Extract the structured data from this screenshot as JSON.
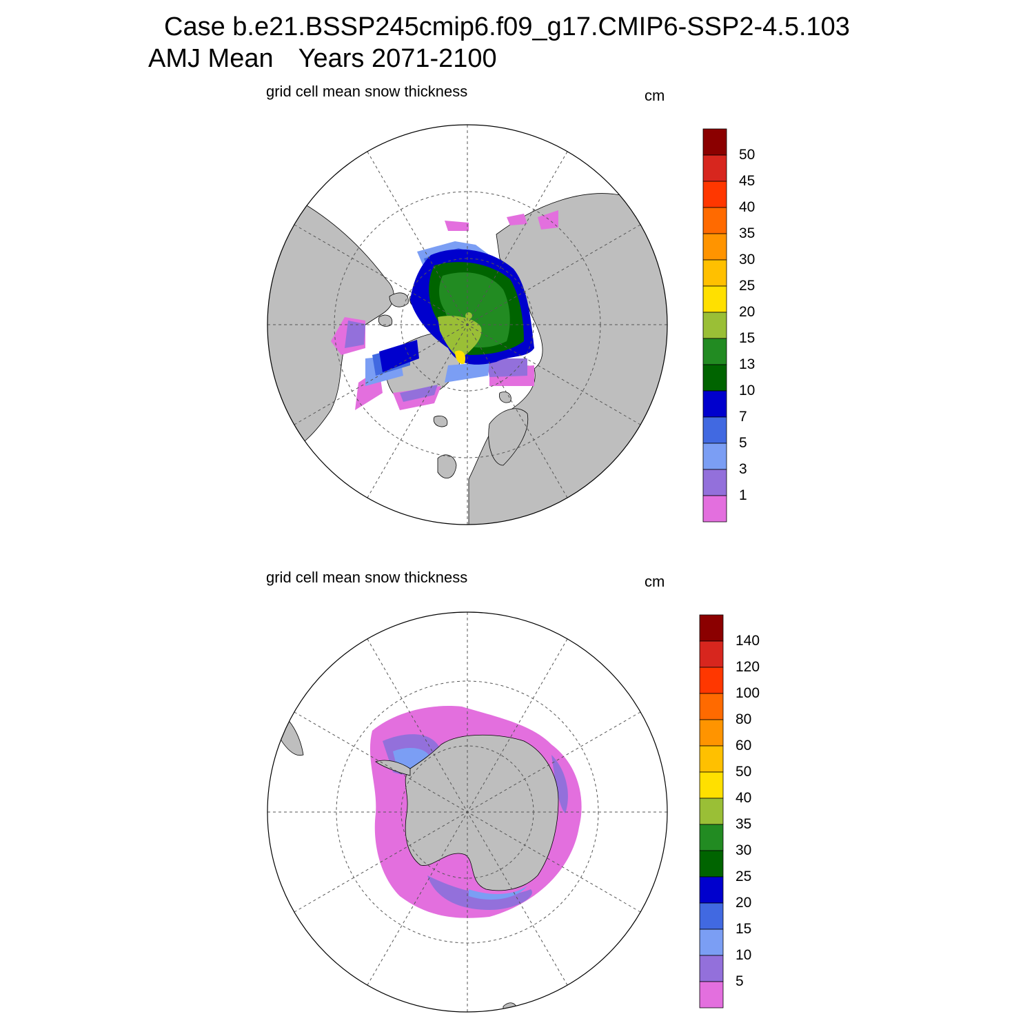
{
  "header": {
    "case_line": "Case b.e21.BSSP245cmip6.f09_g17.CMIP6-SSP2-4.5.103",
    "season": "AMJ Mean",
    "years": "Years 2071-2100"
  },
  "panels": [
    {
      "id": "north",
      "title": "grid cell mean snow thickness",
      "unit": "cm",
      "colorbar": {
        "labels": [
          "50",
          "45",
          "40",
          "35",
          "30",
          "25",
          "20",
          "15",
          "13",
          "10",
          "7",
          "5",
          "3",
          "1"
        ],
        "colors": [
          "#8b0000",
          "#d7261e",
          "#ff3700",
          "#ff6a00",
          "#ff9400",
          "#ffc000",
          "#ffe000",
          "#9abf36",
          "#228b22",
          "#006400",
          "#0000cd",
          "#4169e1",
          "#7b9ef4",
          "#9370db",
          "#e36fde"
        ]
      }
    },
    {
      "id": "south",
      "title": "grid cell mean snow thickness",
      "unit": "cm",
      "colorbar": {
        "labels": [
          "140",
          "120",
          "100",
          "80",
          "60",
          "50",
          "40",
          "35",
          "30",
          "25",
          "20",
          "15",
          "10",
          "5"
        ],
        "colors": [
          "#8b0000",
          "#d7261e",
          "#ff3700",
          "#ff6a00",
          "#ff9400",
          "#ffc000",
          "#ffe000",
          "#9abf36",
          "#228b22",
          "#006400",
          "#0000cd",
          "#4169e1",
          "#7b9ef4",
          "#9370db",
          "#e36fde"
        ]
      }
    }
  ],
  "map_colors": {
    "land": "#bebebe",
    "ocean": "#ffffff",
    "grid": "#555555"
  }
}
